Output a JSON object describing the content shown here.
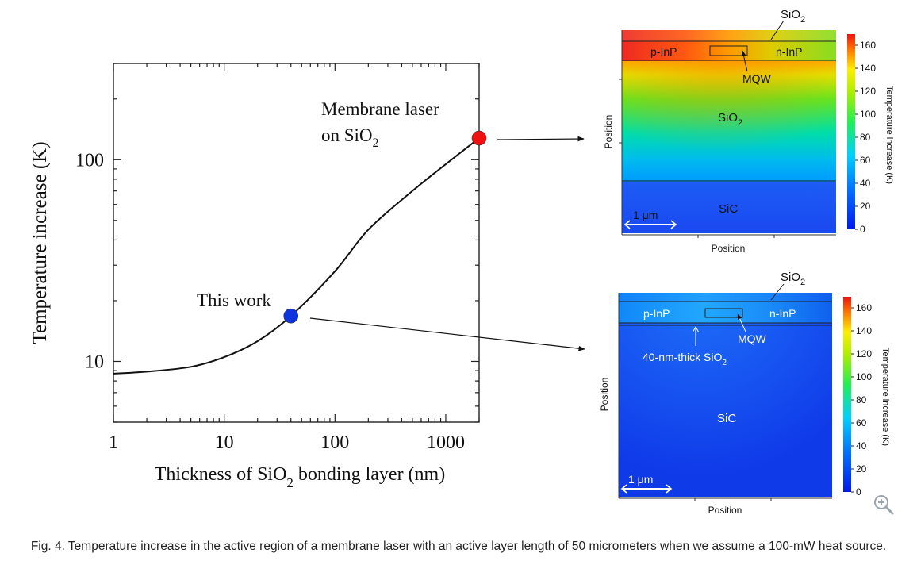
{
  "chart_data": {
    "type": "line",
    "xscale": "log",
    "yscale": "log",
    "xlim": [
      1,
      2000
    ],
    "ylim": [
      5,
      300
    ],
    "xticks": [
      1,
      10,
      100,
      1000
    ],
    "xtick_labels": [
      "1",
      "10",
      "100",
      "1000"
    ],
    "yticks": [
      10,
      100
    ],
    "ytick_labels": [
      "10",
      "100"
    ],
    "xlabel": "Thickness of SiO2 bonding layer (nm)",
    "ylabel": "Temperature increase (K)",
    "series": [
      {
        "name": "Temperature increase",
        "x": [
          1,
          2,
          5,
          10,
          20,
          40,
          100,
          200,
          500,
          1000,
          2000
        ],
        "y": [
          8.7,
          8.9,
          9.4,
          10.5,
          12.6,
          16.8,
          28,
          45,
          70,
          95,
          128
        ]
      }
    ],
    "markers": [
      {
        "name": "this-work",
        "label": "This work",
        "x": 40,
        "y": 16.8,
        "color": "#1133dd"
      },
      {
        "name": "membrane-laser",
        "label_line1": "Membrane laser",
        "label_line2": "on SiO2",
        "x": 2000,
        "y": 128,
        "color": "#ee1111"
      }
    ]
  },
  "labels": {
    "xlabel_pre": "Thickness of SiO",
    "xlabel_sub": "2",
    "xlabel_post": " bonding layer (nm)",
    "ylabel": "Temperature increase (K)",
    "this_work": "This work",
    "membrane_line1": "Membrane laser",
    "membrane_line2_pre": "on SiO",
    "membrane_line2_sub": "2"
  },
  "heatmap_top": {
    "sio2_label": "SiO",
    "sio2_sub": "2",
    "pinp": "p-InP",
    "ninp": "n-InP",
    "mqw": "MQW",
    "sio2_middle": "SiO",
    "sio2_middle_sub": "2",
    "sic": "SiC",
    "scale": "1 μm",
    "xlabel": "Position",
    "ylabel": "Position"
  },
  "heatmap_bottom": {
    "sio2_label": "SiO",
    "sio2_sub": "2",
    "pinp": "p-InP",
    "ninp": "n-InP",
    "mqw": "MQW",
    "thin_label": "40-nm-thick SiO",
    "thin_sub": "2",
    "sic": "SiC",
    "scale": "1 μm",
    "xlabel": "Position",
    "ylabel": "Position"
  },
  "colorbar": {
    "title": "Temperature increase (K)",
    "ticks": [
      "160",
      "140",
      "120",
      "100",
      "80",
      "60",
      "40",
      "20",
      "0"
    ],
    "min": 0,
    "max": 170
  },
  "caption": "Fig. 4. Temperature increase in the active region of a membrane laser with an active layer length of 50 micrometers when we assume a 100-mW heat source."
}
